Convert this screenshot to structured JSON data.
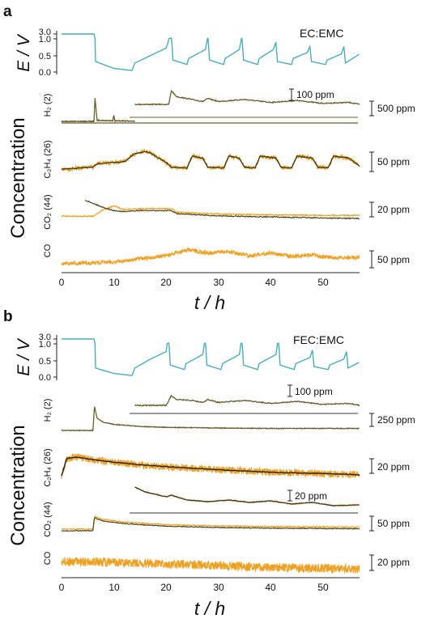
{
  "figure": {
    "panels": [
      {
        "letter": "a",
        "electrolyte": "EC:EMC",
        "potential_label": "E / V",
        "potential_ticks": [
          "3.0",
          "1.0",
          "0.5",
          "0.0"
        ],
        "concentration_label": "Concentration",
        "x_label": "t / h",
        "x_ticks": [
          "0",
          "10",
          "20",
          "30",
          "40",
          "50"
        ],
        "gases": [
          {
            "label": "H₂ (2)",
            "scale": "500 ppm",
            "inset_scale": "100 ppm"
          },
          {
            "label": "C₂H₄ (26)",
            "scale": "50 ppm"
          },
          {
            "label": "CO₂ (44)",
            "scale": "20 ppm"
          },
          {
            "label": "CO",
            "scale": "50 ppm"
          }
        ]
      },
      {
        "letter": "b",
        "electrolyte": "FEC:EMC",
        "potential_label": "E / V",
        "potential_ticks": [
          "3.0",
          "1.0",
          "0.5",
          "0.0"
        ],
        "concentration_label": "Concentration",
        "x_label": "t / h",
        "x_ticks": [
          "0",
          "10",
          "20",
          "30",
          "40",
          "50"
        ],
        "gases": [
          {
            "label": "H₂ (2)",
            "scale": "250 ppm",
            "inset_scale": "100 ppm"
          },
          {
            "label": "C₂H₄ (26)",
            "scale": "20 ppm"
          },
          {
            "label": "CO₂ (44)",
            "scale": "50 ppm",
            "inset_scale": "20 ppm"
          },
          {
            "label": "CO",
            "scale": "20 ppm"
          }
        ]
      }
    ]
  },
  "chart_data": [
    {
      "type": "line",
      "panel": "a",
      "electrolyte": "EC:EMC",
      "xlabel": "t / h",
      "xlim": [
        0,
        57
      ],
      "x_ticks": [
        0,
        10,
        20,
        30,
        40,
        50
      ],
      "potential_ylabel": "E / V",
      "potential_ylim": [
        0,
        3
      ],
      "potential_curve": {
        "t": [
          0,
          6.2,
          6.5,
          10,
          13.5,
          14,
          17,
          20,
          21,
          21.3,
          24,
          24.3,
          27.5,
          28,
          28.3,
          31,
          31.3,
          34,
          34.5,
          34.8,
          37.5,
          37.8,
          40.5,
          41,
          41.3,
          44,
          44.3,
          47,
          47.5,
          47.8,
          50.5,
          50.8,
          53.5,
          54,
          54.3,
          57
        ],
        "E": [
          3.0,
          3.0,
          0.35,
          0.12,
          0.05,
          0.3,
          0.55,
          0.8,
          1.3,
          0.4,
          0.25,
          0.45,
          0.75,
          1.2,
          0.4,
          0.25,
          0.45,
          0.75,
          1.2,
          0.4,
          0.25,
          0.45,
          0.75,
          1.0,
          0.35,
          0.25,
          0.45,
          0.65,
          0.85,
          0.35,
          0.25,
          0.4,
          0.6,
          0.85,
          0.3,
          0.6
        ]
      },
      "gas_series": [
        {
          "label": "H₂ (2)",
          "scale_bar": "500 ppm",
          "inset_scale_bar": "100 ppm",
          "x": [
            0,
            4,
            6.2,
            6.4,
            6.8,
            9.8,
            10,
            10.2,
            14,
            20,
            30,
            40,
            50,
            57
          ],
          "y": [
            0,
            0,
            0,
            220,
            10,
            5,
            60,
            5,
            3,
            3,
            3,
            3,
            3,
            3
          ]
        },
        {
          "label": "C₂H₄ (26)",
          "scale_bar": "50 ppm",
          "x": [
            0,
            6,
            7,
            12,
            14,
            16,
            17,
            20,
            21,
            24,
            25,
            27,
            28,
            31,
            32,
            34,
            35,
            37,
            38,
            41,
            42,
            44,
            45,
            48,
            49,
            51,
            52,
            55,
            57
          ],
          "y": [
            5,
            10,
            18,
            22,
            40,
            45,
            42,
            20,
            10,
            8,
            35,
            30,
            10,
            8,
            35,
            30,
            10,
            8,
            35,
            30,
            10,
            8,
            35,
            30,
            10,
            8,
            35,
            30,
            12
          ]
        },
        {
          "label": "CO₂ (44)",
          "scale_bar": "20 ppm",
          "x": [
            0,
            6,
            8,
            10,
            12,
            15,
            21,
            22,
            30,
            40,
            50,
            57
          ],
          "y": [
            5,
            5,
            20,
            28,
            20,
            22,
            22,
            14,
            10,
            8,
            7,
            7
          ]
        },
        {
          "label": "CO",
          "scale_bar": "50 ppm",
          "x": [
            0,
            10,
            15,
            20,
            24,
            28,
            32,
            36,
            40,
            44,
            48,
            52,
            57
          ],
          "y": [
            8,
            12,
            20,
            28,
            42,
            35,
            38,
            28,
            35,
            26,
            30,
            22,
            24
          ]
        }
      ]
    },
    {
      "type": "line",
      "panel": "b",
      "electrolyte": "FEC:EMC",
      "xlabel": "t / h",
      "xlim": [
        0,
        57
      ],
      "x_ticks": [
        0,
        10,
        20,
        30,
        40,
        50
      ],
      "potential_ylabel": "E / V",
      "potential_ylim": [
        0,
        3
      ],
      "potential_curve": {
        "t": [
          0,
          6.2,
          6.5,
          10,
          13.5,
          14,
          17,
          20,
          20.5,
          20.8,
          23.5,
          23.8,
          27,
          27.5,
          27.8,
          30.5,
          30.8,
          34,
          34.5,
          34.8,
          37.5,
          37.8,
          41,
          41.5,
          41.8,
          44.5,
          44.8,
          47.5,
          48,
          48.3,
          51,
          51.3,
          54,
          54.5,
          54.8,
          57
        ],
        "E": [
          3.0,
          3.0,
          0.3,
          0.12,
          0.05,
          0.3,
          0.6,
          0.85,
          1.35,
          0.4,
          0.25,
          0.45,
          0.75,
          1.3,
          0.4,
          0.25,
          0.45,
          0.75,
          1.3,
          0.4,
          0.25,
          0.45,
          0.75,
          1.3,
          0.4,
          0.25,
          0.45,
          0.65,
          0.9,
          0.35,
          0.25,
          0.4,
          0.6,
          0.85,
          0.3,
          0.5
        ]
      },
      "gas_series": [
        {
          "label": "H₂ (2)",
          "scale_bar": "250 ppm",
          "inset_scale_bar": "100 ppm",
          "x": [
            0,
            6,
            6.3,
            6.8,
            8,
            10,
            15,
            20,
            30,
            40,
            50,
            57
          ],
          "y": [
            0,
            0,
            120,
            60,
            40,
            30,
            20,
            15,
            12,
            10,
            10,
            10
          ]
        },
        {
          "label": "C₂H₄ (26)",
          "scale_bar": "20 ppm",
          "x": [
            0,
            1,
            3,
            6,
            10,
            15,
            20,
            30,
            40,
            50,
            57
          ],
          "y": [
            20,
            48,
            50,
            46,
            42,
            38,
            35,
            30,
            26,
            24,
            22
          ]
        },
        {
          "label": "CO₂ (44)",
          "scale_bar": "50 ppm",
          "inset_scale_bar": "20 ppm",
          "x": [
            0,
            6,
            6.3,
            8,
            12,
            16,
            20,
            30,
            40,
            50,
            57
          ],
          "y": [
            0,
            0,
            40,
            30,
            22,
            18,
            14,
            10,
            8,
            7,
            6
          ]
        },
        {
          "label": "CO",
          "scale_bar": "20 ppm",
          "x": [
            0,
            10,
            20,
            30,
            40,
            50,
            57
          ],
          "y": [
            30,
            28,
            25,
            22,
            18,
            16,
            15
          ]
        }
      ]
    }
  ]
}
